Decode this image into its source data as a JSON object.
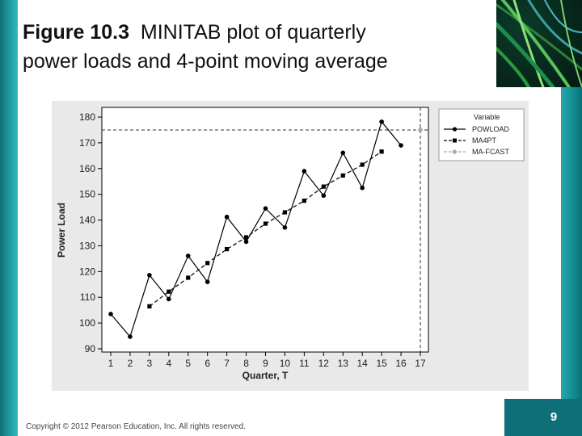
{
  "slide": {
    "title_fig": "Figure 10.3",
    "title_line1": "MINITAB plot of quarterly",
    "title_line2": "power loads and 4-point moving average",
    "copyright": "Copyright © 2012 Pearson Education, Inc. All rights reserved.",
    "page_number": "9"
  },
  "chart_data": {
    "type": "line",
    "xlabel": "Quarter, T",
    "ylabel": "Power Load",
    "x": [
      1,
      2,
      3,
      4,
      5,
      6,
      7,
      8,
      9,
      10,
      11,
      12,
      13,
      14,
      15,
      16,
      17
    ],
    "xlim": [
      1,
      17
    ],
    "ylim": [
      90,
      180
    ],
    "yticks": [
      90,
      100,
      110,
      120,
      130,
      140,
      150,
      160,
      170,
      180
    ],
    "grid": false,
    "legend_title": "Variable",
    "legend_position": "top-right",
    "series": [
      {
        "name": "POWLOAD",
        "marker": "circle",
        "line": "solid",
        "color": "#000000",
        "x": [
          1,
          2,
          3,
          4,
          5,
          6,
          7,
          8,
          9,
          10,
          11,
          12,
          13,
          14,
          15,
          16
        ],
        "values": [
          103.5,
          94.7,
          118.6,
          109.3,
          126.1,
          116.0,
          141.2,
          131.6,
          144.5,
          137.1,
          159.0,
          149.5,
          166.1,
          152.5,
          178.2,
          169.0
        ]
      },
      {
        "name": "MA4PT",
        "marker": "square",
        "line": "dashed",
        "color": "#000000",
        "x": [
          3,
          4,
          5,
          6,
          7,
          8,
          9,
          10,
          11,
          12,
          13,
          14,
          15
        ],
        "values": [
          106.5,
          112.2,
          117.6,
          123.3,
          128.7,
          133.3,
          138.6,
          143.0,
          147.5,
          153.0,
          157.3,
          161.5,
          166.6
        ]
      },
      {
        "name": "MA-FCAST",
        "marker": "circle",
        "line": "dashed",
        "color": "#a8a8a8",
        "x": [
          17
        ],
        "values": [
          175.0
        ]
      }
    ],
    "forecast_reference": {
      "y": 175.0,
      "x": 17
    }
  }
}
